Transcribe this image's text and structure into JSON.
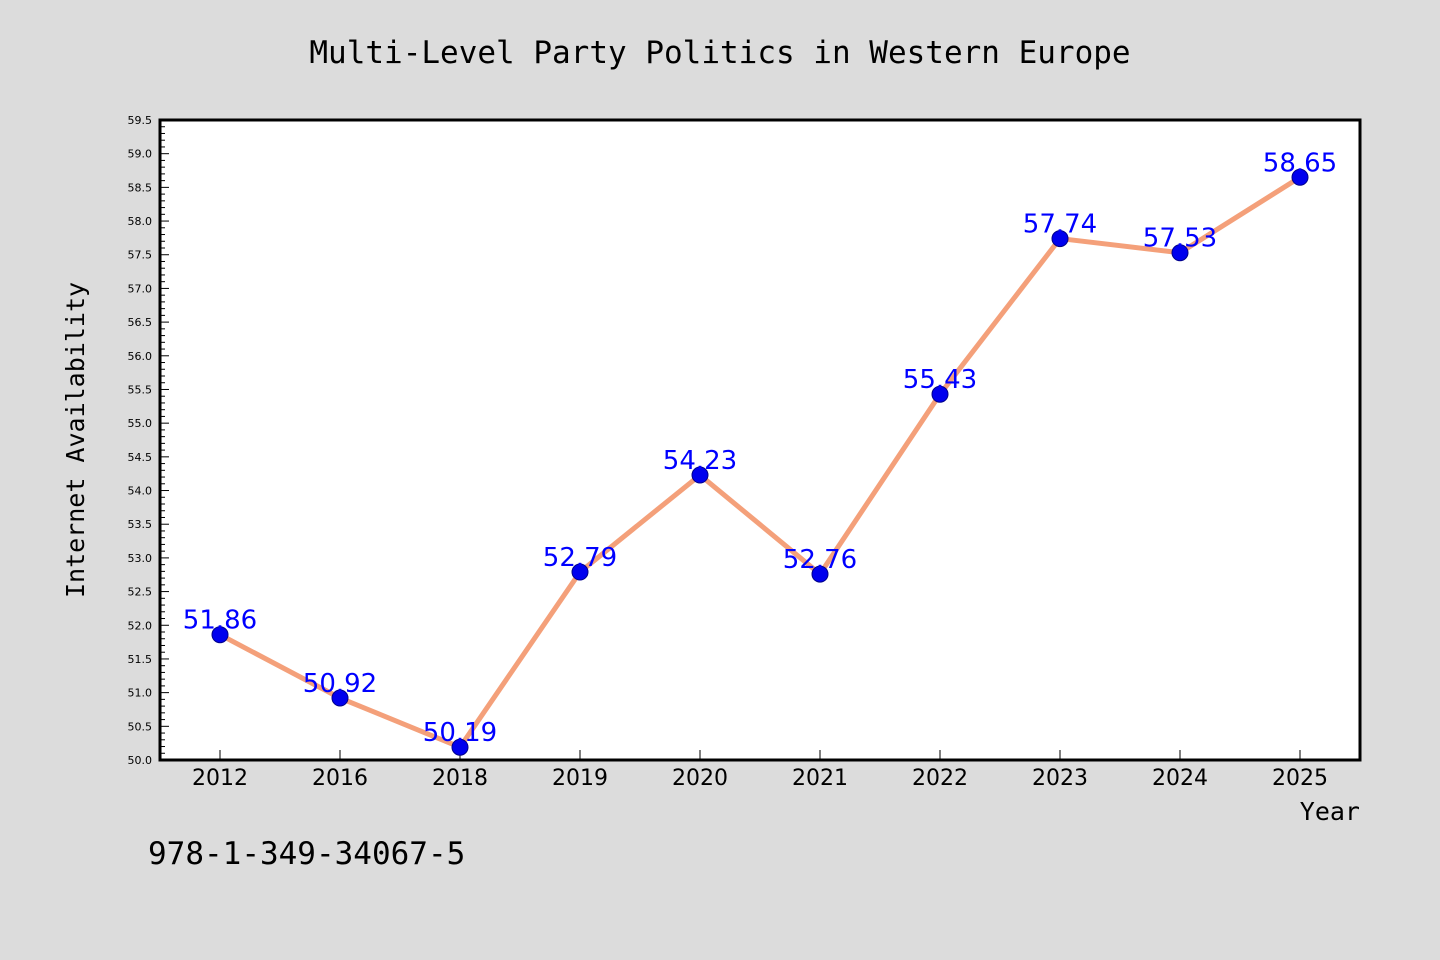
{
  "chart_data": {
    "type": "line",
    "title": "Multi-Level Party Politics in Western Europe",
    "xlabel": "Year",
    "ylabel": "Internet Availability",
    "categories": [
      "2012",
      "2016",
      "2018",
      "2019",
      "2020",
      "2021",
      "2022",
      "2023",
      "2024",
      "2025"
    ],
    "series": [
      {
        "values": [
          51.86,
          50.92,
          50.19,
          52.79,
          54.23,
          52.76,
          55.43,
          57.74,
          57.53,
          58.65
        ],
        "labels": [
          "51.86",
          "50.92",
          "50.19",
          "52.79",
          "54.23",
          "52.76",
          "55.43",
          "57.74",
          "57.53",
          "58.65"
        ],
        "line_color": "#f4a07a",
        "marker_color": "#0000ee",
        "label_color": "#0000ff"
      }
    ],
    "ylim": [
      50.0,
      59.5
    ],
    "y_ticks": [
      "50.0",
      "50.5",
      "51.0",
      "51.5",
      "52.0",
      "52.5",
      "53.0",
      "53.5",
      "54.0",
      "54.5",
      "55.0",
      "55.5",
      "56.0",
      "56.5",
      "57.0",
      "57.5",
      "58.0",
      "58.5",
      "59.0",
      "59.5"
    ],
    "y_minor_step": 0.1,
    "grid": false,
    "legend": "none",
    "background_color": "#dcdcdc",
    "plot_background_color": "#ffffff"
  },
  "footer": {
    "isbn": "978-1-349-34067-5"
  }
}
